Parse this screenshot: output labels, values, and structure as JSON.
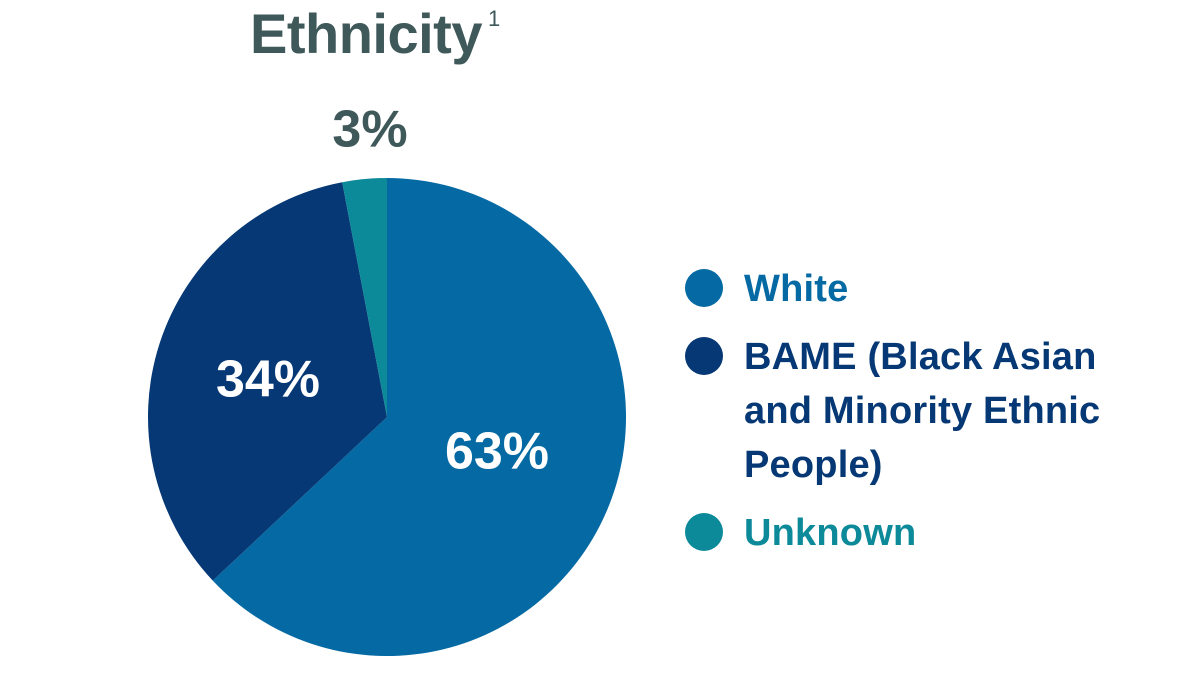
{
  "title": "Ethnicity",
  "title_footnote": "1",
  "colors": {
    "title": "#3f5859",
    "label_dark": "#3f5859",
    "label_light": "#ffffff"
  },
  "chart_data": {
    "type": "pie",
    "title": "Ethnicity",
    "legend_position": "right",
    "slices": [
      {
        "label": "White",
        "value": 63,
        "display": "63%",
        "color": "#0569a3"
      },
      {
        "label": "BAME (Black Asian and Minority Ethnic People)",
        "value": 34,
        "display": "34%",
        "color": "#053874"
      },
      {
        "label": "Unknown",
        "value": 3,
        "display": "3%",
        "color": "#0d8a9a"
      }
    ]
  }
}
